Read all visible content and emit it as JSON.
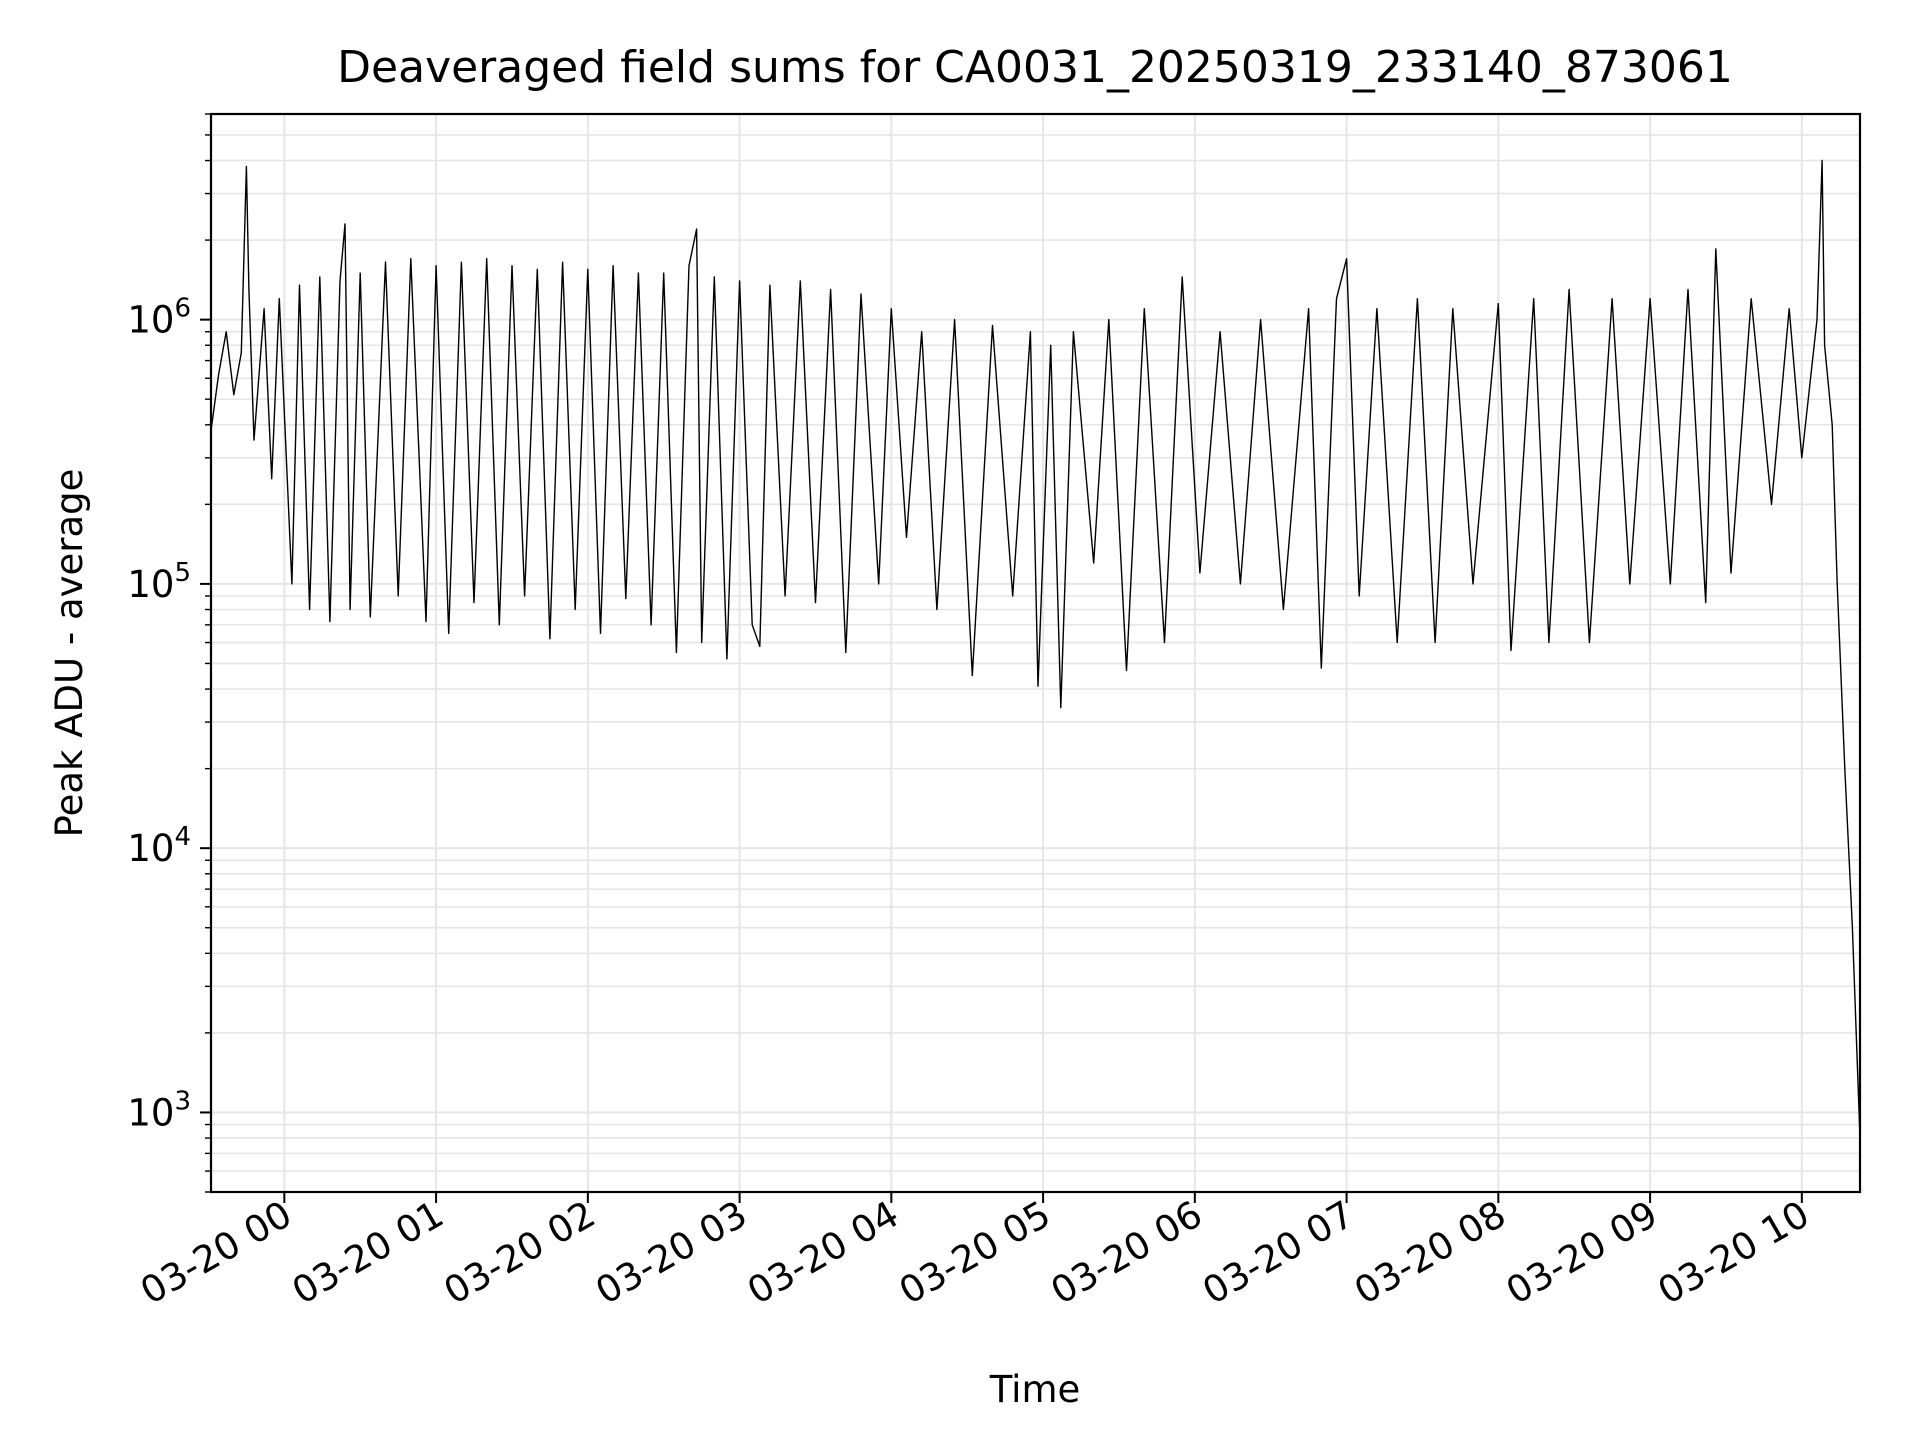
{
  "chart_data": {
    "type": "line",
    "title": "Deaveraged field sums for CA0031_20250319_233140_873061",
    "xlabel": "Time",
    "ylabel": "Peak ADU - average",
    "yscale": "log",
    "ylim": [
      500,
      6000000
    ],
    "xlim": [
      "2025-03-19 23:31",
      "2025-03-20 10:23"
    ],
    "x_ticks": [
      "2025-03-20 00:00",
      "2025-03-20 01:00",
      "2025-03-20 02:00",
      "2025-03-20 03:00",
      "2025-03-20 04:00",
      "2025-03-20 05:00",
      "2025-03-20 06:00",
      "2025-03-20 07:00",
      "2025-03-20 08:00",
      "2025-03-20 09:00",
      "2025-03-20 10:00"
    ],
    "x_tick_labels": [
      "03-20 00",
      "03-20 01",
      "03-20 02",
      "03-20 03",
      "03-20 04",
      "03-20 05",
      "03-20 06",
      "03-20 07",
      "03-20 08",
      "03-20 09",
      "03-20 10"
    ],
    "y_ticks": [
      1000,
      10000,
      100000,
      1000000
    ],
    "y_tick_labels": [
      {
        "base": "10",
        "exp": "3"
      },
      {
        "base": "10",
        "exp": "4"
      },
      {
        "base": "10",
        "exp": "5"
      },
      {
        "base": "10",
        "exp": "6"
      }
    ],
    "grid": true,
    "line_color": "#000000",
    "grid_color": "#e6e6e6",
    "series": [
      {
        "points": [
          [
            "2025-03-19 23:31",
            380000
          ],
          [
            "2025-03-19 23:34",
            620000
          ],
          [
            "2025-03-19 23:37",
            900000
          ],
          [
            "2025-03-19 23:40",
            520000
          ],
          [
            "2025-03-19 23:43",
            750000
          ],
          [
            "2025-03-19 23:45",
            3800000
          ],
          [
            "2025-03-19 23:46",
            1300000
          ],
          [
            "2025-03-19 23:48",
            350000
          ],
          [
            "2025-03-19 23:52",
            1100000
          ],
          [
            "2025-03-19 23:55",
            250000
          ],
          [
            "2025-03-19 23:58",
            1200000
          ],
          [
            "2025-03-20 00:03",
            100000
          ],
          [
            "2025-03-20 00:06",
            1350000
          ],
          [
            "2025-03-20 00:10",
            80000
          ],
          [
            "2025-03-20 00:14",
            1450000
          ],
          [
            "2025-03-20 00:18",
            72000
          ],
          [
            "2025-03-20 00:22",
            1400000
          ],
          [
            "2025-03-20 00:24",
            2300000
          ],
          [
            "2025-03-20 00:26",
            80000
          ],
          [
            "2025-03-20 00:30",
            1500000
          ],
          [
            "2025-03-20 00:34",
            75000
          ],
          [
            "2025-03-20 00:40",
            1650000
          ],
          [
            "2025-03-20 00:45",
            90000
          ],
          [
            "2025-03-20 00:50",
            1700000
          ],
          [
            "2025-03-20 00:56",
            72000
          ],
          [
            "2025-03-20 01:00",
            1600000
          ],
          [
            "2025-03-20 01:05",
            65000
          ],
          [
            "2025-03-20 01:10",
            1650000
          ],
          [
            "2025-03-20 01:15",
            85000
          ],
          [
            "2025-03-20 01:20",
            1700000
          ],
          [
            "2025-03-20 01:25",
            70000
          ],
          [
            "2025-03-20 01:30",
            1600000
          ],
          [
            "2025-03-20 01:35",
            90000
          ],
          [
            "2025-03-20 01:40",
            1550000
          ],
          [
            "2025-03-20 01:45",
            62000
          ],
          [
            "2025-03-20 01:50",
            1650000
          ],
          [
            "2025-03-20 01:55",
            80000
          ],
          [
            "2025-03-20 02:00",
            1550000
          ],
          [
            "2025-03-20 02:05",
            65000
          ],
          [
            "2025-03-20 02:10",
            1600000
          ],
          [
            "2025-03-20 02:15",
            88000
          ],
          [
            "2025-03-20 02:20",
            1500000
          ],
          [
            "2025-03-20 02:25",
            70000
          ],
          [
            "2025-03-20 02:30",
            1500000
          ],
          [
            "2025-03-20 02:35",
            55000
          ],
          [
            "2025-03-20 02:40",
            1600000
          ],
          [
            "2025-03-20 02:43",
            2200000
          ],
          [
            "2025-03-20 02:45",
            60000
          ],
          [
            "2025-03-20 02:50",
            1450000
          ],
          [
            "2025-03-20 02:55",
            52000
          ],
          [
            "2025-03-20 03:00",
            1400000
          ],
          [
            "2025-03-20 03:05",
            70000
          ],
          [
            "2025-03-20 03:08",
            58000
          ],
          [
            "2025-03-20 03:12",
            1350000
          ],
          [
            "2025-03-20 03:18",
            90000
          ],
          [
            "2025-03-20 03:24",
            1400000
          ],
          [
            "2025-03-20 03:30",
            85000
          ],
          [
            "2025-03-20 03:36",
            1300000
          ],
          [
            "2025-03-20 03:42",
            55000
          ],
          [
            "2025-03-20 03:48",
            1250000
          ],
          [
            "2025-03-20 03:55",
            100000
          ],
          [
            "2025-03-20 04:00",
            1100000
          ],
          [
            "2025-03-20 04:06",
            150000
          ],
          [
            "2025-03-20 04:12",
            900000
          ],
          [
            "2025-03-20 04:18",
            80000
          ],
          [
            "2025-03-20 04:25",
            1000000
          ],
          [
            "2025-03-20 04:32",
            45000
          ],
          [
            "2025-03-20 04:40",
            950000
          ],
          [
            "2025-03-20 04:48",
            90000
          ],
          [
            "2025-03-20 04:55",
            900000
          ],
          [
            "2025-03-20 04:58",
            41000
          ],
          [
            "2025-03-20 05:03",
            800000
          ],
          [
            "2025-03-20 05:07",
            34000
          ],
          [
            "2025-03-20 05:12",
            900000
          ],
          [
            "2025-03-20 05:20",
            120000
          ],
          [
            "2025-03-20 05:26",
            1000000
          ],
          [
            "2025-03-20 05:33",
            47000
          ],
          [
            "2025-03-20 05:40",
            1100000
          ],
          [
            "2025-03-20 05:48",
            60000
          ],
          [
            "2025-03-20 05:55",
            1450000
          ],
          [
            "2025-03-20 06:02",
            110000
          ],
          [
            "2025-03-20 06:10",
            900000
          ],
          [
            "2025-03-20 06:18",
            100000
          ],
          [
            "2025-03-20 06:26",
            1000000
          ],
          [
            "2025-03-20 06:35",
            80000
          ],
          [
            "2025-03-20 06:45",
            1100000
          ],
          [
            "2025-03-20 06:50",
            48000
          ],
          [
            "2025-03-20 06:56",
            1200000
          ],
          [
            "2025-03-20 07:00",
            1700000
          ],
          [
            "2025-03-20 07:05",
            90000
          ],
          [
            "2025-03-20 07:12",
            1100000
          ],
          [
            "2025-03-20 07:20",
            60000
          ],
          [
            "2025-03-20 07:28",
            1200000
          ],
          [
            "2025-03-20 07:35",
            60000
          ],
          [
            "2025-03-20 07:42",
            1100000
          ],
          [
            "2025-03-20 07:50",
            100000
          ],
          [
            "2025-03-20 08:00",
            1150000
          ],
          [
            "2025-03-20 08:05",
            56000
          ],
          [
            "2025-03-20 08:14",
            1200000
          ],
          [
            "2025-03-20 08:20",
            60000
          ],
          [
            "2025-03-20 08:28",
            1300000
          ],
          [
            "2025-03-20 08:36",
            60000
          ],
          [
            "2025-03-20 08:45",
            1200000
          ],
          [
            "2025-03-20 08:52",
            100000
          ],
          [
            "2025-03-20 09:00",
            1200000
          ],
          [
            "2025-03-20 09:08",
            100000
          ],
          [
            "2025-03-20 09:15",
            1300000
          ],
          [
            "2025-03-20 09:22",
            85000
          ],
          [
            "2025-03-20 09:26",
            1850000
          ],
          [
            "2025-03-20 09:32",
            110000
          ],
          [
            "2025-03-20 09:40",
            1200000
          ],
          [
            "2025-03-20 09:48",
            200000
          ],
          [
            "2025-03-20 09:55",
            1100000
          ],
          [
            "2025-03-20 10:00",
            300000
          ],
          [
            "2025-03-20 10:06",
            1000000
          ],
          [
            "2025-03-20 10:08",
            4000000
          ],
          [
            "2025-03-20 10:09",
            800000
          ],
          [
            "2025-03-20 10:12",
            400000
          ],
          [
            "2025-03-20 10:14",
            100000
          ],
          [
            "2025-03-20 10:17",
            20000
          ],
          [
            "2025-03-20 10:20",
            5000
          ],
          [
            "2025-03-20 10:23",
            800
          ]
        ]
      }
    ]
  }
}
